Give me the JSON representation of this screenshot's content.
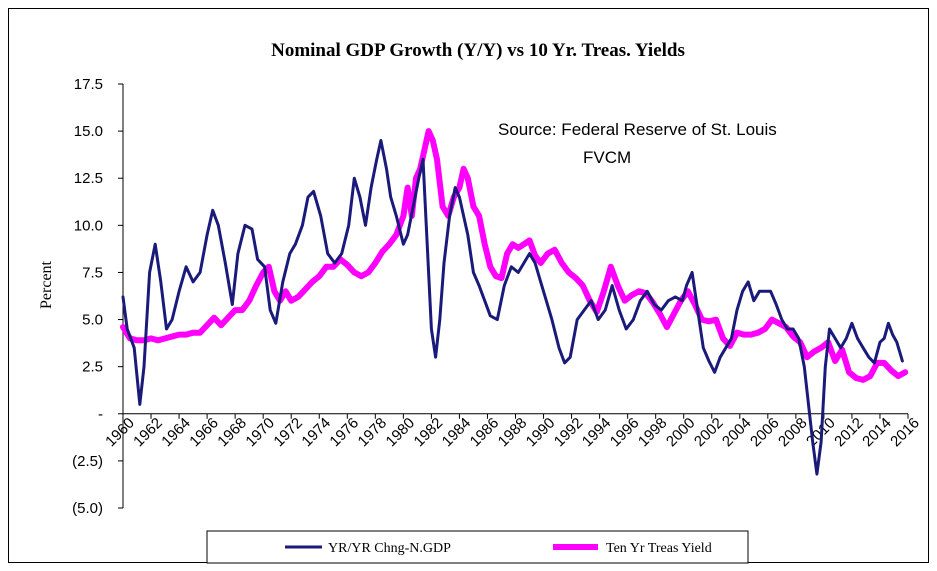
{
  "chart_data": {
    "type": "line",
    "title": "Nominal GDP Growth (Y/Y) vs 10 Yr. Treas. Yields",
    "ylabel": "Percent",
    "xlabel": "",
    "ylim": [
      -5,
      17.5
    ],
    "xlim": [
      1960,
      2016
    ],
    "y_ticks": [
      {
        "value": 17.5,
        "label": "17.5"
      },
      {
        "value": 15.0,
        "label": "15.0"
      },
      {
        "value": 12.5,
        "label": "12.5"
      },
      {
        "value": 10.0,
        "label": "10.0"
      },
      {
        "value": 7.5,
        "label": "7.5"
      },
      {
        "value": 5.0,
        "label": "5.0"
      },
      {
        "value": 2.5,
        "label": "2.5"
      },
      {
        "value": 0,
        "label": "-"
      },
      {
        "value": -2.5,
        "label": "(2.5)"
      },
      {
        "value": -5.0,
        "label": "(5.0)"
      }
    ],
    "x_ticks": [
      "1960",
      "1962",
      "1964",
      "1966",
      "1968",
      "1970",
      "1972",
      "1974",
      "1976",
      "1978",
      "1980",
      "1982",
      "1984",
      "1986",
      "1988",
      "1990",
      "1992",
      "1994",
      "1996",
      "1998",
      "2000",
      "2002",
      "2004",
      "2006",
      "2008",
      "2010",
      "2012",
      "2014",
      "2016"
    ],
    "annotation": [
      "Source: Federal Reserve of St. Louis",
      "FVCM"
    ],
    "legend_position": "bottom",
    "grid": false,
    "series": [
      {
        "name": "YR/YR Chng-N.GDP",
        "color": "#1a1a7a",
        "x": [
          1960,
          1960.3,
          1960.8,
          1961.2,
          1961.5,
          1961.9,
          1962.3,
          1962.7,
          1963.1,
          1963.5,
          1964,
          1964.5,
          1965,
          1965.5,
          1966,
          1966.4,
          1966.8,
          1967.3,
          1967.8,
          1968.2,
          1968.7,
          1969.2,
          1969.6,
          1970.1,
          1970.5,
          1970.9,
          1971.4,
          1971.9,
          1972.3,
          1972.8,
          1973.2,
          1973.6,
          1974.1,
          1974.6,
          1975.1,
          1975.6,
          1976.1,
          1976.5,
          1976.9,
          1977.3,
          1977.7,
          1978.1,
          1978.4,
          1978.8,
          1979.1,
          1979.5,
          1980,
          1980.3,
          1980.7,
          1981.1,
          1981.4,
          1981.7,
          1982,
          1982.3,
          1982.6,
          1982.9,
          1983.3,
          1983.7,
          1984,
          1984.3,
          1984.6,
          1985,
          1985.4,
          1985.8,
          1986.2,
          1986.7,
          1987.2,
          1987.7,
          1988.2,
          1988.6,
          1989,
          1989.4,
          1989.8,
          1990.2,
          1990.6,
          1991.1,
          1991.5,
          1991.9,
          1992.4,
          1992.9,
          1993.4,
          1993.9,
          1994.4,
          1994.9,
          1995.4,
          1995.9,
          1996.4,
          1996.9,
          1997.4,
          1997.9,
          1998.4,
          1998.9,
          1999.4,
          1999.9,
          2000.2,
          2000.6,
          2001,
          2001.4,
          2001.8,
          2002.2,
          2002.6,
          2003,
          2003.4,
          2003.8,
          2004.2,
          2004.6,
          2005,
          2005.4,
          2005.8,
          2006.2,
          2006.6,
          2007,
          2007.4,
          2007.8,
          2008.2,
          2008.6,
          2008.9,
          2009.2,
          2009.5,
          2009.8,
          2010.1,
          2010.4,
          2010.8,
          2011.2,
          2011.6,
          2012,
          2012.4,
          2012.8,
          2013.2,
          2013.6,
          2014,
          2014.3,
          2014.6,
          2014.9,
          2015.2,
          2015.6
        ],
        "values": [
          6.2,
          4.5,
          3.5,
          0.5,
          2.5,
          7.5,
          9.0,
          7.0,
          4.5,
          5.0,
          6.5,
          7.8,
          7.0,
          7.5,
          9.5,
          10.8,
          10.0,
          8.0,
          5.8,
          8.5,
          10.0,
          9.8,
          8.2,
          7.8,
          5.5,
          4.8,
          7.0,
          8.5,
          9.0,
          10.0,
          11.5,
          11.8,
          10.5,
          8.5,
          8.0,
          8.5,
          10.0,
          12.5,
          11.5,
          10.0,
          12.0,
          13.5,
          14.5,
          13.0,
          11.5,
          10.5,
          9.0,
          9.5,
          11.0,
          12.5,
          13.5,
          9.0,
          4.5,
          3.0,
          5.0,
          8.0,
          10.5,
          12.0,
          11.5,
          10.5,
          9.5,
          7.5,
          6.8,
          6.0,
          5.2,
          5.0,
          6.8,
          7.8,
          7.5,
          8.0,
          8.5,
          8.0,
          7.0,
          6.0,
          5.0,
          3.5,
          2.7,
          3.0,
          5.0,
          5.5,
          6.0,
          5.0,
          5.5,
          6.8,
          5.5,
          4.5,
          5.0,
          6.0,
          6.5,
          5.8,
          5.5,
          6.0,
          6.2,
          6.0,
          6.8,
          7.5,
          5.5,
          3.5,
          2.8,
          2.2,
          3.0,
          3.5,
          4.0,
          5.5,
          6.5,
          7.0,
          6.0,
          6.5,
          6.5,
          6.5,
          5.8,
          5.0,
          4.5,
          4.5,
          4.0,
          2.5,
          0.5,
          -1.5,
          -3.2,
          -1.5,
          2.5,
          4.5,
          4.0,
          3.5,
          4.0,
          4.8,
          4.0,
          3.5,
          3.0,
          2.7,
          3.8,
          4.0,
          4.8,
          4.2,
          3.8,
          2.8
        ],
        "line_width": 3
      },
      {
        "name": "Ten Yr Treas Yield",
        "color": "#ff00ff",
        "x": [
          1960,
          1960.5,
          1961,
          1961.5,
          1962,
          1962.5,
          1963,
          1963.5,
          1964,
          1964.5,
          1965,
          1965.5,
          1966,
          1966.5,
          1967,
          1967.5,
          1968,
          1968.5,
          1969,
          1969.5,
          1970,
          1970.4,
          1970.8,
          1971.2,
          1971.6,
          1972,
          1972.5,
          1973,
          1973.5,
          1974,
          1974.5,
          1975,
          1975.5,
          1976,
          1976.5,
          1977,
          1977.5,
          1978,
          1978.5,
          1979,
          1979.5,
          1980,
          1980.3,
          1980.6,
          1980.9,
          1981.2,
          1981.5,
          1981.8,
          1982.1,
          1982.4,
          1982.8,
          1983.2,
          1983.6,
          1984,
          1984.3,
          1984.6,
          1985,
          1985.4,
          1985.8,
          1986.2,
          1986.6,
          1987,
          1987.4,
          1987.8,
          1988.2,
          1988.6,
          1989,
          1989.4,
          1989.8,
          1990.3,
          1990.8,
          1991.3,
          1991.8,
          1992.3,
          1992.8,
          1993.3,
          1993.8,
          1994.3,
          1994.8,
          1995.3,
          1995.8,
          1996.3,
          1996.8,
          1997.3,
          1997.8,
          1998.3,
          1998.8,
          1999.3,
          1999.8,
          2000.3,
          2000.8,
          2001.3,
          2001.8,
          2002.3,
          2002.8,
          2003.3,
          2003.8,
          2004.3,
          2004.8,
          2005.3,
          2005.8,
          2006.3,
          2006.8,
          2007.3,
          2007.8,
          2008.3,
          2008.8,
          2009.3,
          2009.8,
          2010.3,
          2010.8,
          2011.3,
          2011.8,
          2012.3,
          2012.8,
          2013.3,
          2013.8,
          2014.3,
          2014.8,
          2015.3,
          2015.8
        ],
        "values": [
          4.6,
          4.0,
          3.9,
          3.9,
          4.0,
          3.9,
          4.0,
          4.1,
          4.2,
          4.2,
          4.3,
          4.3,
          4.7,
          5.1,
          4.7,
          5.1,
          5.5,
          5.5,
          6.0,
          6.8,
          7.5,
          7.8,
          6.5,
          6.0,
          6.5,
          6.0,
          6.2,
          6.6,
          7.0,
          7.3,
          7.8,
          7.8,
          8.2,
          7.9,
          7.5,
          7.3,
          7.5,
          8.0,
          8.6,
          9.0,
          9.5,
          10.5,
          12.0,
          10.5,
          12.5,
          13.0,
          14.0,
          15.0,
          14.5,
          13.5,
          11.0,
          10.5,
          11.5,
          12.0,
          13.0,
          12.5,
          11.0,
          10.5,
          9.0,
          7.8,
          7.3,
          7.2,
          8.5,
          9.0,
          8.8,
          9.0,
          9.2,
          8.4,
          8.0,
          8.5,
          8.7,
          8.0,
          7.5,
          7.2,
          6.8,
          6.0,
          5.4,
          6.5,
          7.8,
          6.8,
          6.0,
          6.3,
          6.5,
          6.4,
          5.9,
          5.3,
          4.6,
          5.3,
          6.0,
          6.5,
          5.8,
          5.0,
          4.9,
          5.0,
          4.0,
          3.6,
          4.3,
          4.2,
          4.2,
          4.3,
          4.5,
          5.0,
          4.8,
          4.6,
          4.1,
          3.8,
          3.0,
          3.3,
          3.5,
          3.8,
          2.8,
          3.4,
          2.2,
          1.9,
          1.8,
          2.0,
          2.7,
          2.7,
          2.3,
          2.0,
          2.2
        ],
        "line_width": 6
      }
    ]
  }
}
